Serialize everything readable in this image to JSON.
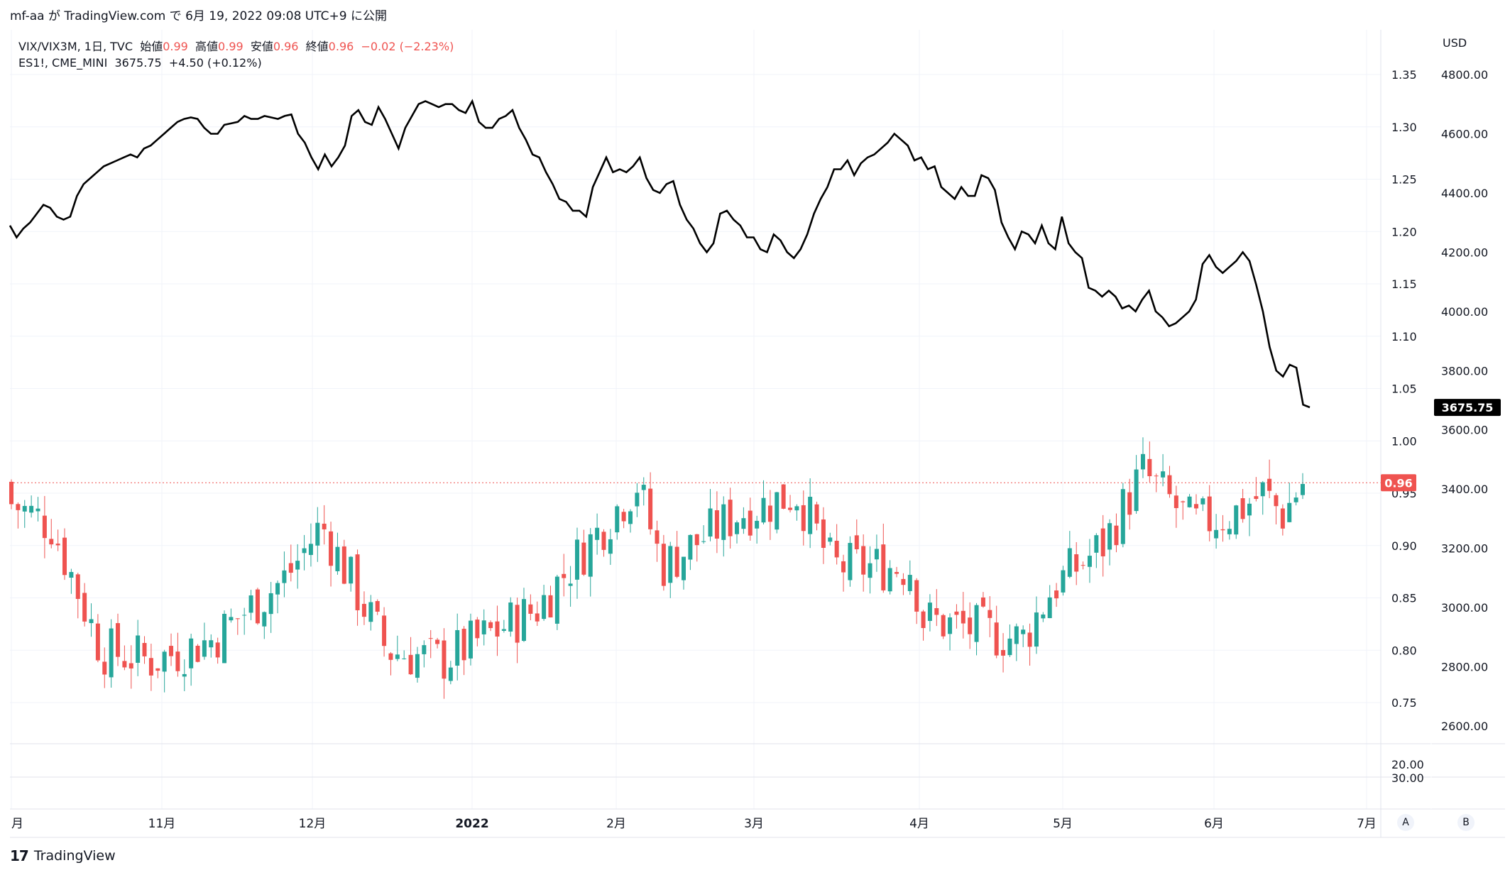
{
  "header": {
    "text": "mf-aa が TradingView.com で 6月 19, 2022 09:08 UTC+9 に公開"
  },
  "legend1": {
    "symbol": "VIX/VIX3M, 1日, TVC",
    "open_label": "始値",
    "open": "0.99",
    "high_label": "高値",
    "high": "0.99",
    "low_label": "安値",
    "low": "0.96",
    "close_label": "終値",
    "close": "0.96",
    "change": "−0.02 (−2.23%)"
  },
  "legend2": {
    "symbol": "ES1!, CME_MINI",
    "value": "3675.75",
    "change": "+4.50 (+0.12%)"
  },
  "axis": {
    "currency": "USD",
    "ratio_ticks": [
      "1.35",
      "1.30",
      "1.25",
      "1.20",
      "1.15",
      "1.10",
      "1.05",
      "1.00",
      "0.95",
      "0.90",
      "0.85",
      "0.80",
      "0.75"
    ],
    "es_ticks": [
      "4800.00",
      "4600.00",
      "4400.00",
      "4200.00",
      "4000.00",
      "3800.00",
      "3600.00",
      "3400.00",
      "3200.00",
      "3000.00",
      "2800.00",
      "2600.00"
    ],
    "sub_ticks": [
      "20.00",
      "30.00"
    ],
    "x_ticks": [
      "月",
      "11月",
      "12月",
      "2022",
      "2月",
      "3月",
      "4月",
      "5月",
      "6月",
      "7月"
    ],
    "ratio_badge": "0.96",
    "es_badge": "3675.75"
  },
  "buttons": {
    "a": "A",
    "b": "B"
  },
  "footer": {
    "brand": "TradingView",
    "logo_mark": "17"
  },
  "colors": {
    "up": "#26a69a",
    "down": "#ef5350",
    "line": "#000000",
    "grid": "#f0f3fa"
  },
  "chart_data": {
    "type": "line",
    "series": [
      {
        "name": "ES1!, CME_MINI",
        "type": "line",
        "values": [
          4290,
          4250,
          4280,
          4300,
          4330,
          4360,
          4350,
          4320,
          4310,
          4320,
          4390,
          4430,
          4450,
          4470,
          4490,
          4500,
          4510,
          4520,
          4530,
          4520,
          4550,
          4560,
          4580,
          4600,
          4620,
          4640,
          4650,
          4655,
          4650,
          4620,
          4600,
          4600,
          4630,
          4635,
          4640,
          4660,
          4650,
          4650,
          4660,
          4655,
          4650,
          4660,
          4665,
          4600,
          4570,
          4520,
          4480,
          4530,
          4490,
          4520,
          4560,
          4660,
          4680,
          4640,
          4630,
          4690,
          4650,
          4600,
          4550,
          4620,
          4660,
          4700,
          4710,
          4700,
          4690,
          4700,
          4700,
          4680,
          4670,
          4710,
          4640,
          4620,
          4620,
          4650,
          4660,
          4680,
          4620,
          4580,
          4530,
          4520,
          4470,
          4430,
          4380,
          4370,
          4340,
          4340,
          4320,
          4420,
          4470,
          4520,
          4470,
          4480,
          4470,
          4490,
          4520,
          4450,
          4410,
          4400,
          4430,
          4440,
          4360,
          4310,
          4280,
          4230,
          4200,
          4230,
          4330,
          4340,
          4310,
          4290,
          4250,
          4250,
          4210,
          4200,
          4260,
          4240,
          4200,
          4180,
          4210,
          4260,
          4330,
          4380,
          4420,
          4480,
          4480,
          4510,
          4460,
          4500,
          4520,
          4530,
          4550,
          4570,
          4600,
          4580,
          4560,
          4510,
          4520,
          4480,
          4490,
          4420,
          4400,
          4380,
          4420,
          4390,
          4390,
          4460,
          4450,
          4410,
          4300,
          4250,
          4210,
          4270,
          4260,
          4230,
          4290,
          4230,
          4210,
          4320,
          4230,
          4200,
          4180,
          4080,
          4070,
          4050,
          4070,
          4050,
          4010,
          4020,
          4000,
          4040,
          4070,
          4000,
          3980,
          3950,
          3960,
          3980,
          4000,
          4040,
          4160,
          4190,
          4150,
          4130,
          4150,
          4170,
          4200,
          4170,
          4090,
          4000,
          3880,
          3800,
          3780,
          3820,
          3810,
          3685,
          3676
        ]
      },
      {
        "name": "VIX/VIX3M",
        "type": "candlestick",
        "last": 0.96
      }
    ],
    "xlabel": "",
    "ylabel": "",
    "ylim_ratio": [
      0.72,
      1.36
    ],
    "ylim_es": [
      2500,
      4850
    ],
    "grid": true
  }
}
